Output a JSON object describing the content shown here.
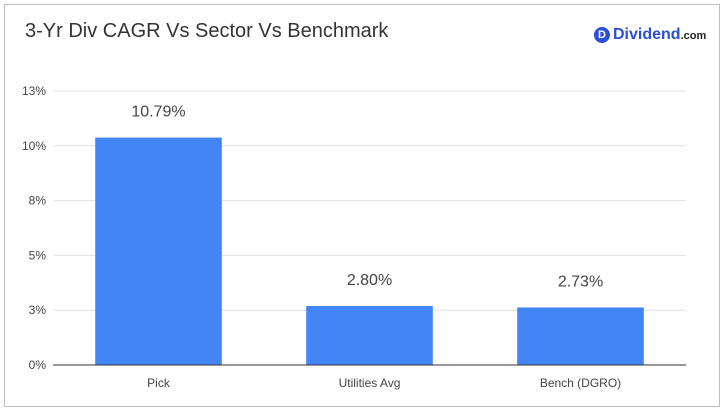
{
  "logo": {
    "badge": "D",
    "text": "Dividend",
    "suffix": ".com"
  },
  "colors": {
    "bar": "#4285f4",
    "grid": "#e0e0e0",
    "axis": "#333333",
    "logo": "#2d4fd6"
  },
  "chart_data": {
    "type": "bar",
    "title": "3-Yr Div CAGR Vs Sector Vs Benchmark",
    "xlabel": "",
    "ylabel": "",
    "categories": [
      "Pick",
      "Utilities Avg",
      "Bench (DGRO)"
    ],
    "values": [
      10.79,
      2.8,
      2.73
    ],
    "data_labels": [
      "10.79%",
      "2.80%",
      "2.73%"
    ],
    "ylim": [
      0,
      13
    ],
    "yticks": [
      {
        "value": 0,
        "label": "0%"
      },
      {
        "value": 2.6,
        "label": "3%"
      },
      {
        "value": 5.2,
        "label": "5%"
      },
      {
        "value": 7.8,
        "label": "8%"
      },
      {
        "value": 10.4,
        "label": "10%"
      },
      {
        "value": 13,
        "label": "13%"
      }
    ],
    "grid": true,
    "legend": "none"
  }
}
